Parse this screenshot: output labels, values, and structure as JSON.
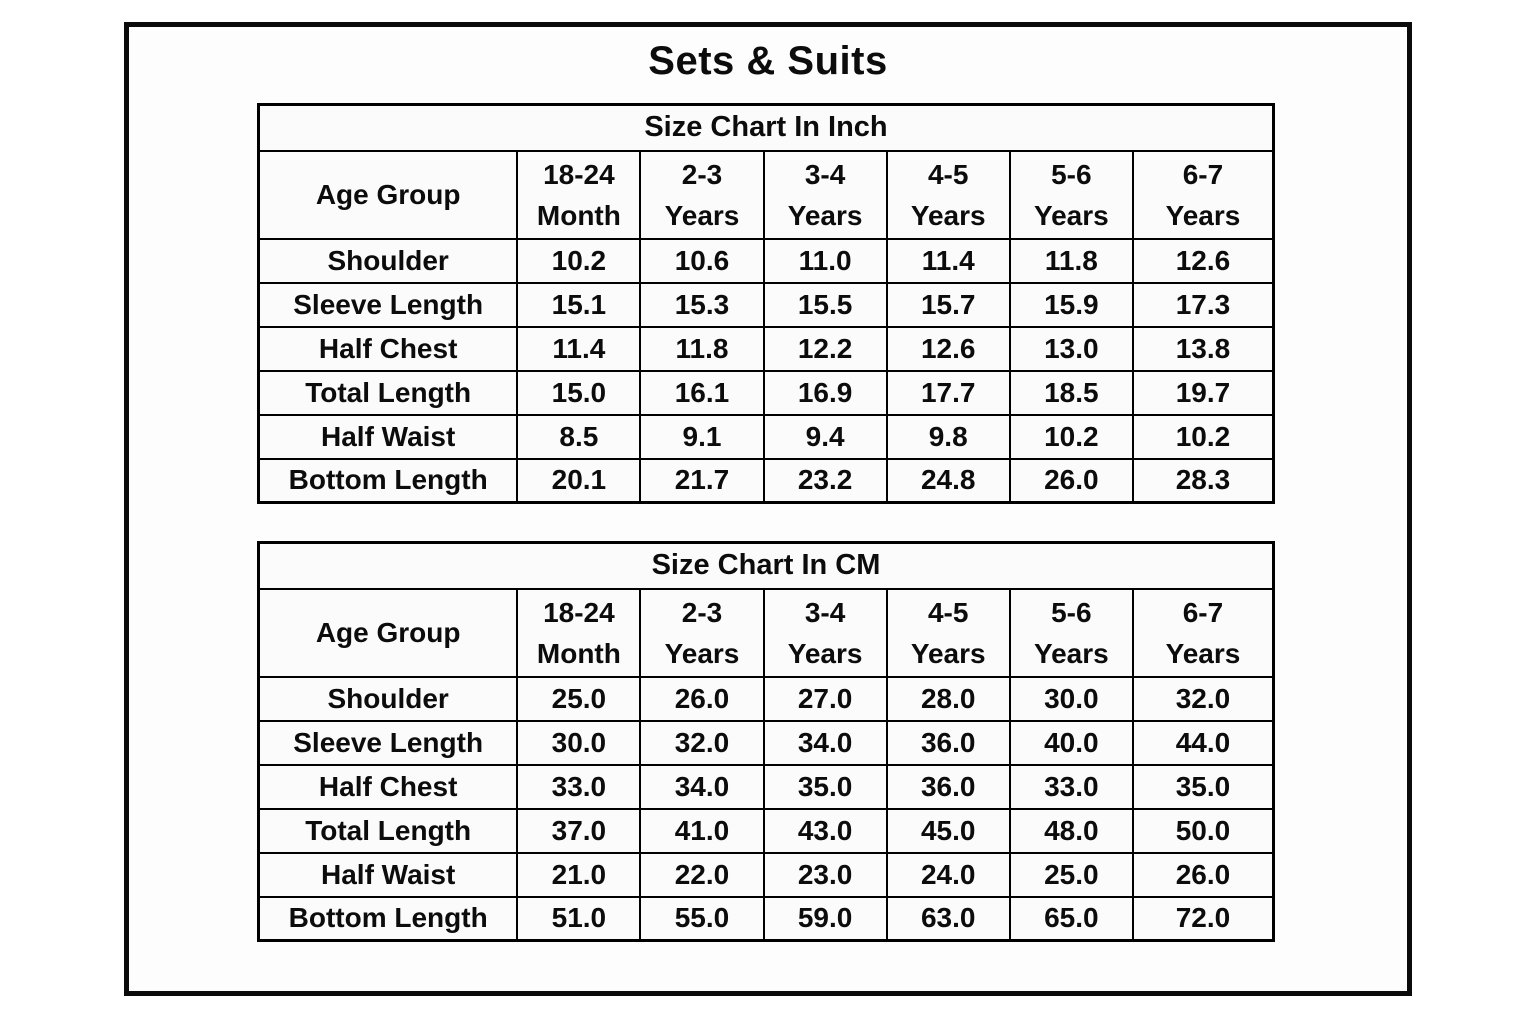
{
  "page": {
    "title": "Sets & Suits"
  },
  "colors": {
    "text": "#0c0c0c",
    "border": "#000000",
    "cell_background": "#fbfbfb",
    "page_background": "#ffffff"
  },
  "tables": [
    {
      "title": "Size Chart In Inch",
      "corner_label": "Age Group",
      "age_columns": [
        {
          "line1": "18-24",
          "line2": "Month"
        },
        {
          "line1": "2-3",
          "line2": "Years"
        },
        {
          "line1": "3-4",
          "line2": "Years"
        },
        {
          "line1": "4-5",
          "line2": "Years"
        },
        {
          "line1": "5-6",
          "line2": "Years"
        },
        {
          "line1": "6-7",
          "line2": "Years"
        }
      ],
      "rows": [
        {
          "label": "Shoulder",
          "values": [
            "10.2",
            "10.6",
            "11.0",
            "11.4",
            "11.8",
            "12.6"
          ]
        },
        {
          "label": "Sleeve Length",
          "values": [
            "15.1",
            "15.3",
            "15.5",
            "15.7",
            "15.9",
            "17.3"
          ]
        },
        {
          "label": "Half Chest",
          "values": [
            "11.4",
            "11.8",
            "12.2",
            "12.6",
            "13.0",
            "13.8"
          ]
        },
        {
          "label": "Total Length",
          "values": [
            "15.0",
            "16.1",
            "16.9",
            "17.7",
            "18.5",
            "19.7"
          ]
        },
        {
          "label": "Half Waist",
          "values": [
            "8.5",
            "9.1",
            "9.4",
            "9.8",
            "10.2",
            "10.2"
          ]
        },
        {
          "label": "Bottom Length",
          "values": [
            "20.1",
            "21.7",
            "23.2",
            "24.8",
            "26.0",
            "28.3"
          ]
        }
      ]
    },
    {
      "title": "Size Chart In CM",
      "corner_label": "Age Group",
      "age_columns": [
        {
          "line1": "18-24",
          "line2": "Month"
        },
        {
          "line1": "2-3",
          "line2": "Years"
        },
        {
          "line1": "3-4",
          "line2": "Years"
        },
        {
          "line1": "4-5",
          "line2": "Years"
        },
        {
          "line1": "5-6",
          "line2": "Years"
        },
        {
          "line1": "6-7",
          "line2": "Years"
        }
      ],
      "rows": [
        {
          "label": "Shoulder",
          "values": [
            "25.0",
            "26.0",
            "27.0",
            "28.0",
            "30.0",
            "32.0"
          ]
        },
        {
          "label": "Sleeve Length",
          "values": [
            "30.0",
            "32.0",
            "34.0",
            "36.0",
            "40.0",
            "44.0"
          ]
        },
        {
          "label": "Half Chest",
          "values": [
            "33.0",
            "34.0",
            "35.0",
            "36.0",
            "33.0",
            "35.0"
          ]
        },
        {
          "label": "Total Length",
          "values": [
            "37.0",
            "41.0",
            "43.0",
            "45.0",
            "48.0",
            "50.0"
          ]
        },
        {
          "label": "Half Waist",
          "values": [
            "21.0",
            "22.0",
            "23.0",
            "24.0",
            "25.0",
            "26.0"
          ]
        },
        {
          "label": "Bottom Length",
          "values": [
            "51.0",
            "55.0",
            "59.0",
            "63.0",
            "65.0",
            "72.0"
          ]
        }
      ]
    }
  ],
  "chart_data": [
    {
      "type": "table",
      "title": "Size Chart In Inch",
      "columns": [
        "Age Group",
        "18-24 Month",
        "2-3 Years",
        "3-4 Years",
        "4-5 Years",
        "5-6 Years",
        "6-7 Years"
      ],
      "rows": [
        [
          "Shoulder",
          10.2,
          10.6,
          11.0,
          11.4,
          11.8,
          12.6
        ],
        [
          "Sleeve Length",
          15.1,
          15.3,
          15.5,
          15.7,
          15.9,
          17.3
        ],
        [
          "Half Chest",
          11.4,
          11.8,
          12.2,
          12.6,
          13.0,
          13.8
        ],
        [
          "Total Length",
          15.0,
          16.1,
          16.9,
          17.7,
          18.5,
          19.7
        ],
        [
          "Half Waist",
          8.5,
          9.1,
          9.4,
          9.8,
          10.2,
          10.2
        ],
        [
          "Bottom Length",
          20.1,
          21.7,
          23.2,
          24.8,
          26.0,
          28.3
        ]
      ]
    },
    {
      "type": "table",
      "title": "Size Chart In CM",
      "columns": [
        "Age Group",
        "18-24 Month",
        "2-3 Years",
        "3-4 Years",
        "4-5 Years",
        "5-6 Years",
        "6-7 Years"
      ],
      "rows": [
        [
          "Shoulder",
          25.0,
          26.0,
          27.0,
          28.0,
          30.0,
          32.0
        ],
        [
          "Sleeve Length",
          30.0,
          32.0,
          34.0,
          36.0,
          40.0,
          44.0
        ],
        [
          "Half Chest",
          33.0,
          34.0,
          35.0,
          36.0,
          33.0,
          35.0
        ],
        [
          "Total Length",
          37.0,
          41.0,
          43.0,
          45.0,
          48.0,
          50.0
        ],
        [
          "Half Waist",
          21.0,
          22.0,
          23.0,
          24.0,
          25.0,
          26.0
        ],
        [
          "Bottom Length",
          51.0,
          55.0,
          59.0,
          63.0,
          65.0,
          72.0
        ]
      ]
    }
  ]
}
